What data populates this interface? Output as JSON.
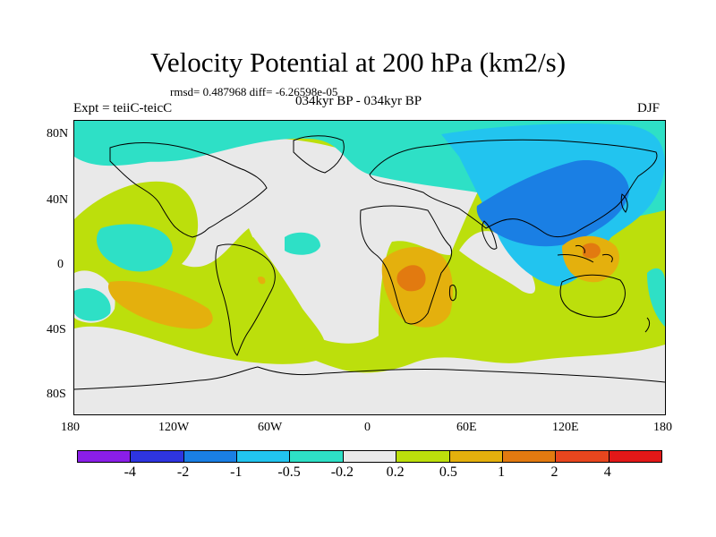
{
  "title": "Velocity Potential at 200 hPa (km2/s)",
  "stats": "rmsd= 0.487968 diff= -6.26598e-05",
  "experiment": "Expt = teiiC-teicC",
  "period": "034kyr BP - 034kyr BP",
  "season": "DJF",
  "lat_labels": [
    "80N",
    "40N",
    "0",
    "40S",
    "80S"
  ],
  "lon_labels": [
    "180",
    "120W",
    "60W",
    "0",
    "60E",
    "120E",
    "180"
  ],
  "colorbar": {
    "colors": [
      "#8a1ee8",
      "#2e35e0",
      "#1a7fe4",
      "#22c4ef",
      "#2ee0c6",
      "#e9e9e9",
      "#bcdf0c",
      "#e4b00d",
      "#e27a10",
      "#e8461e",
      "#e21818"
    ],
    "labels": [
      "-4",
      "-2",
      "-1",
      "-0.5",
      "-0.2",
      "0.2",
      "0.5",
      "1",
      "2",
      "4"
    ]
  },
  "map_palette": {
    "ocean_pos": "#bcdf0c",
    "neutral": "#e9e9e9",
    "neg_light": "#2ee0c6",
    "neg_mid": "#22c4ef",
    "neg_strong": "#1a7fe4",
    "pos_mid": "#e4b00d",
    "pos_strong": "#e27a10",
    "coast": "#000000"
  }
}
